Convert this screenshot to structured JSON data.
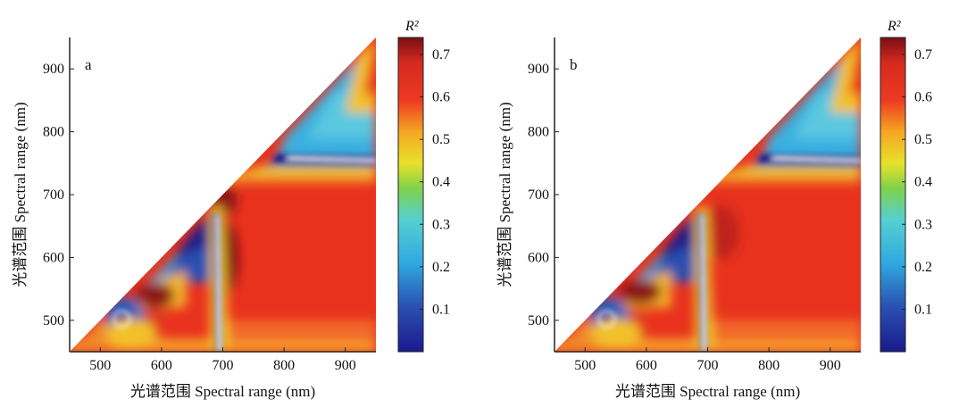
{
  "chart_data": [
    {
      "type": "heatmap",
      "panel_label": "a",
      "xlabel": "光谱范围 Spectral range (nm)",
      "ylabel": "光谱范围 Spectral range (nm)",
      "x_ticks": [
        500,
        600,
        700,
        800,
        900
      ],
      "y_ticks": [
        500,
        600,
        700,
        800,
        900
      ],
      "xlim": [
        450,
        950
      ],
      "ylim": [
        450,
        950
      ],
      "mask": "upper-left triangle (y > x) is empty",
      "colorbar": {
        "title": "R²",
        "ticks": [
          0.1,
          0.2,
          0.3,
          0.4,
          0.5,
          0.6,
          0.7
        ],
        "range": [
          0.0,
          0.74
        ],
        "colormap": "jet"
      },
      "regions": [
        {
          "description": "low R² pocket",
          "center": [
            540,
            505
          ],
          "r2": 0.05
        },
        {
          "description": "low R² band along diagonal",
          "center": [
            640,
            600
          ],
          "r2": 0.1
        },
        {
          "description": "sharp low R² boundary",
          "x_range": [
            680,
            710
          ],
          "y_range": [
            450,
            680
          ],
          "r2": 0.05
        },
        {
          "description": "high R² plateau",
          "x_range": [
            720,
            950
          ],
          "y_range": [
            470,
            720
          ],
          "r2": 0.65
        },
        {
          "description": "peak R² ridge",
          "center": [
            700,
            600
          ],
          "r2": 0.73
        },
        {
          "description": "low R² band",
          "x_range": [
            780,
            950
          ],
          "y_range": [
            740,
            790
          ],
          "r2": 0.05
        }
      ]
    },
    {
      "type": "heatmap",
      "panel_label": "b",
      "xlabel": "光谱范围 Spectral range (nm)",
      "ylabel": "光谱范围 Spectral range (nm)",
      "x_ticks": [
        500,
        600,
        700,
        800,
        900
      ],
      "y_ticks": [
        500,
        600,
        700,
        800,
        900
      ],
      "xlim": [
        450,
        950
      ],
      "ylim": [
        450,
        950
      ],
      "mask": "upper-left triangle (y > x) is empty",
      "colorbar": {
        "title": "R²",
        "ticks": [
          0.1,
          0.2,
          0.3,
          0.4,
          0.5,
          0.6,
          0.7
        ],
        "range": [
          0.0,
          0.74
        ],
        "colormap": "jet"
      },
      "regions": [
        {
          "description": "low R² pocket",
          "center": [
            540,
            505
          ],
          "r2": 0.05
        },
        {
          "description": "low R² band along diagonal",
          "center": [
            640,
            600
          ],
          "r2": 0.1
        },
        {
          "description": "sharp low R² boundary",
          "x_range": [
            680,
            710
          ],
          "y_range": [
            450,
            680
          ],
          "r2": 0.05
        },
        {
          "description": "high R² plateau",
          "x_range": [
            720,
            950
          ],
          "y_range": [
            470,
            720
          ],
          "r2": 0.64
        },
        {
          "description": "peak R² ridge",
          "center": [
            590,
            540
          ],
          "r2": 0.72
        },
        {
          "description": "low R² band",
          "x_range": [
            800,
            950
          ],
          "y_range": [
            740,
            790
          ],
          "r2": 0.05
        }
      ]
    }
  ]
}
